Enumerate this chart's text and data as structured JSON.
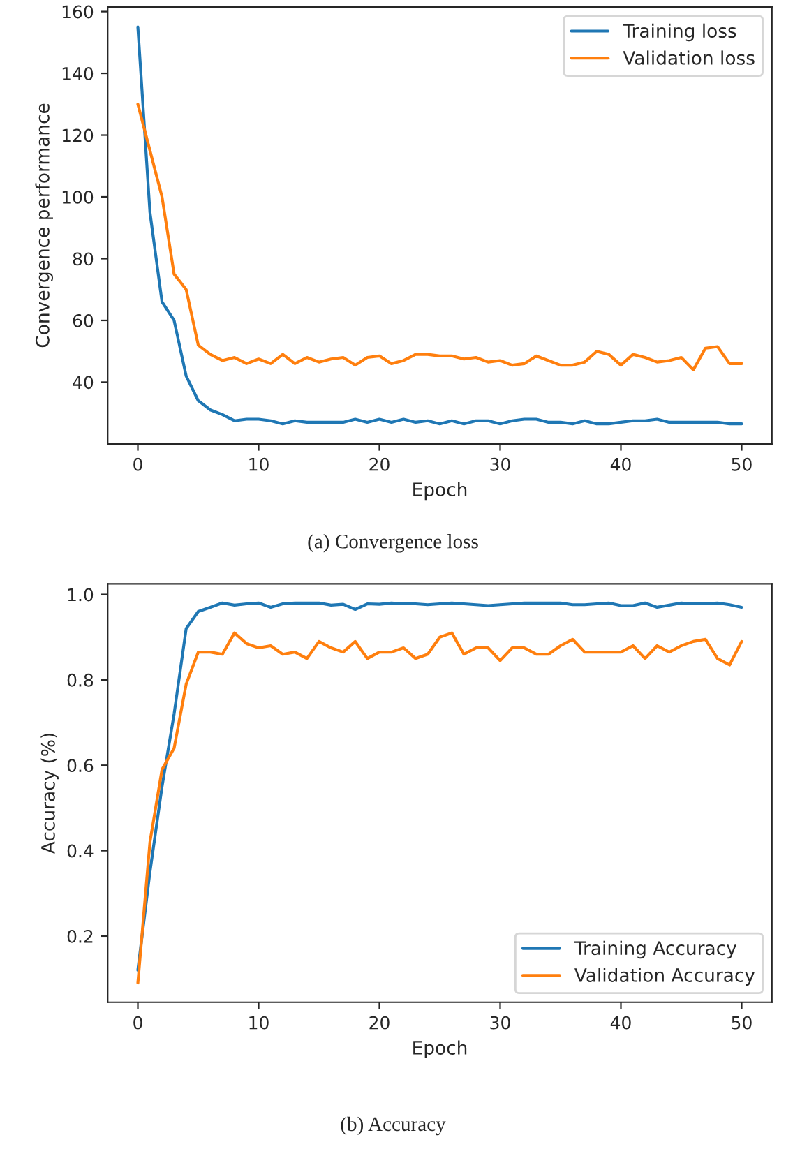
{
  "chart_data": [
    {
      "type": "line",
      "xlabel": "Epoch",
      "ylabel": "Convergence performance",
      "annotations": [
        "(a) Convergence loss"
      ],
      "x": [
        0,
        1,
        2,
        3,
        4,
        5,
        6,
        7,
        8,
        9,
        10,
        11,
        12,
        13,
        14,
        15,
        16,
        17,
        18,
        19,
        20,
        21,
        22,
        23,
        24,
        25,
        26,
        27,
        28,
        29,
        30,
        31,
        32,
        33,
        34,
        35,
        36,
        37,
        38,
        39,
        40,
        41,
        42,
        43,
        44,
        45,
        46,
        47,
        48,
        49,
        50
      ],
      "xlim": [
        -2.5,
        52.5
      ],
      "xticks": [
        0,
        10,
        20,
        30,
        40,
        50
      ],
      "ylim": [
        20,
        161.5
      ],
      "yticks": [
        40,
        60,
        80,
        100,
        120,
        140,
        160
      ],
      "grid": false,
      "legend": "top right",
      "series": [
        {
          "name": "Training loss",
          "color": "#1f77b4",
          "values": [
            155,
            95,
            66,
            60,
            42,
            34,
            31,
            29.5,
            27.5,
            28,
            28,
            27.5,
            26.5,
            27.5,
            27,
            27,
            27,
            27,
            28,
            27,
            28,
            27,
            28,
            27,
            27.5,
            26.5,
            27.5,
            26.5,
            27.5,
            27.5,
            26.5,
            27.5,
            28,
            28,
            27,
            27,
            26.5,
            27.5,
            26.5,
            26.5,
            27,
            27.5,
            27.5,
            28,
            27,
            27,
            27,
            27,
            27,
            26.5,
            26.5
          ]
        },
        {
          "name": "Validation loss",
          "color": "#ff7f0e",
          "values": [
            130,
            115,
            100,
            75,
            70,
            52,
            49,
            47,
            48,
            46,
            47.5,
            46,
            49,
            46,
            48,
            46.5,
            47.5,
            48,
            45.5,
            48,
            48.5,
            46,
            47,
            49,
            49,
            48.5,
            48.5,
            47.5,
            48,
            46.5,
            47,
            45.5,
            46,
            48.5,
            47,
            45.5,
            45.5,
            46.5,
            50,
            49,
            45.5,
            49,
            48,
            46.5,
            47,
            48,
            44,
            51,
            51.5,
            46,
            46
          ]
        }
      ]
    },
    {
      "type": "line",
      "xlabel": "Epoch",
      "ylabel": "Accuracy (%)",
      "annotations": [
        "(b) Accuracy"
      ],
      "x": [
        0,
        1,
        2,
        3,
        4,
        5,
        6,
        7,
        8,
        9,
        10,
        11,
        12,
        13,
        14,
        15,
        16,
        17,
        18,
        19,
        20,
        21,
        22,
        23,
        24,
        25,
        26,
        27,
        28,
        29,
        30,
        31,
        32,
        33,
        34,
        35,
        36,
        37,
        38,
        39,
        40,
        41,
        42,
        43,
        44,
        45,
        46,
        47,
        48,
        49,
        50
      ],
      "xlim": [
        -2.5,
        52.5
      ],
      "xticks": [
        0,
        10,
        20,
        30,
        40,
        50
      ],
      "ylim": [
        0.045,
        1.025
      ],
      "yticks": [
        {
          "value": 0.2,
          "label": "0.2"
        },
        {
          "value": 0.4,
          "label": "0.4"
        },
        {
          "value": 0.6,
          "label": "0.6"
        },
        {
          "value": 0.8,
          "label": "0.8"
        },
        {
          "value": 1.0,
          "label": "1.0"
        }
      ],
      "grid": false,
      "legend": "bottom right",
      "series": [
        {
          "name": "Training Accuracy",
          "color": "#1f77b4",
          "values": [
            0.12,
            0.35,
            0.55,
            0.72,
            0.92,
            0.96,
            0.97,
            0.98,
            0.975,
            0.978,
            0.98,
            0.97,
            0.978,
            0.98,
            0.98,
            0.98,
            0.975,
            0.977,
            0.965,
            0.978,
            0.977,
            0.98,
            0.978,
            0.978,
            0.976,
            0.978,
            0.98,
            0.978,
            0.976,
            0.974,
            0.976,
            0.978,
            0.98,
            0.98,
            0.98,
            0.98,
            0.976,
            0.976,
            0.978,
            0.98,
            0.974,
            0.974,
            0.98,
            0.97,
            0.975,
            0.98,
            0.978,
            0.978,
            0.98,
            0.976,
            0.97
          ]
        },
        {
          "name": "Validation Accuracy",
          "color": "#ff7f0e",
          "values": [
            0.09,
            0.42,
            0.59,
            0.64,
            0.79,
            0.865,
            0.865,
            0.86,
            0.91,
            0.885,
            0.875,
            0.88,
            0.86,
            0.865,
            0.85,
            0.89,
            0.875,
            0.865,
            0.89,
            0.85,
            0.865,
            0.865,
            0.875,
            0.85,
            0.86,
            0.9,
            0.91,
            0.86,
            0.875,
            0.875,
            0.845,
            0.875,
            0.875,
            0.86,
            0.86,
            0.88,
            0.895,
            0.865,
            0.865,
            0.865,
            0.865,
            0.88,
            0.85,
            0.88,
            0.865,
            0.88,
            0.89,
            0.895,
            0.85,
            0.835,
            0.89
          ]
        }
      ]
    }
  ]
}
